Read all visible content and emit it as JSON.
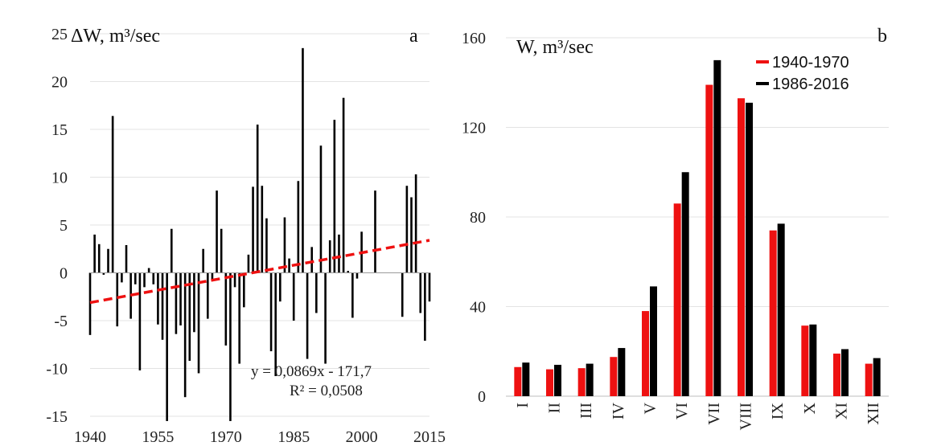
{
  "chart_data": [
    {
      "type": "bar",
      "panel_letter": "a",
      "title": "ΔW, m³/sec",
      "xlabel": "",
      "ylabel": "",
      "xlim": [
        1940,
        2015
      ],
      "ylim": [
        -15,
        25
      ],
      "x_ticks": [
        "1940",
        "1955",
        "1970",
        "1985",
        "2000",
        "2015"
      ],
      "y_ticks": [
        "25",
        "20",
        "15",
        "10",
        "5",
        "0",
        "-5",
        "-10",
        "-15"
      ],
      "grid": true,
      "x": [
        1940,
        1941,
        1942,
        1943,
        1944,
        1945,
        1946,
        1947,
        1948,
        1949,
        1950,
        1951,
        1952,
        1953,
        1954,
        1955,
        1956,
        1957,
        1958,
        1959,
        1960,
        1961,
        1962,
        1963,
        1964,
        1965,
        1966,
        1967,
        1968,
        1969,
        1970,
        1971,
        1972,
        1973,
        1974,
        1975,
        1976,
        1977,
        1978,
        1979,
        1980,
        1981,
        1982,
        1983,
        1984,
        1985,
        1986,
        1987,
        1988,
        1989,
        1990,
        1991,
        1992,
        1993,
        1994,
        1995,
        1996,
        1997,
        1998,
        1999,
        2000,
        2001,
        2002,
        2003,
        2004,
        2005,
        2006,
        2007,
        2008,
        2009,
        2010,
        2011,
        2012,
        2013,
        2014,
        2015
      ],
      "values": [
        -6.5,
        4.0,
        3.0,
        -0.2,
        2.5,
        16.4,
        -5.6,
        -1.0,
        2.9,
        -4.8,
        -1.2,
        -10.2,
        -1.5,
        0.5,
        -1.2,
        -5.4,
        -7.0,
        -15.5,
        4.6,
        -6.4,
        -5.5,
        -13.0,
        -9.2,
        -6.2,
        -10.5,
        2.5,
        -4.8,
        -0.7,
        8.6,
        4.6,
        -7.6,
        -15.5,
        -1.5,
        -9.5,
        -3.6,
        1.9,
        9.0,
        15.5,
        9.1,
        5.7,
        -8.2,
        -10.8,
        -3.0,
        5.8,
        1.5,
        -5.0,
        9.6,
        23.5,
        -9.0,
        2.7,
        -4.2,
        13.3,
        -9.5,
        3.4,
        16.0,
        4.0,
        18.3,
        0.2,
        -4.7,
        -0.6,
        4.3,
        0.0,
        0.0,
        8.6,
        0.0,
        0.0,
        0.0,
        0.0,
        0.0,
        -4.6,
        9.1,
        7.9,
        10.3,
        -4.2,
        -7.1,
        -3.0
      ],
      "series": [
        {
          "name": "",
          "color": "#000000"
        }
      ],
      "trendline": {
        "slope": 0.0869,
        "intercept": -171.7,
        "color": "#ee1111",
        "style": "dashed",
        "equation": "y = 0,0869x - 171,7",
        "r2": "R² = 0,0508"
      }
    },
    {
      "type": "bar",
      "panel_letter": "b",
      "title": "W, m³/sec",
      "xlabel": "",
      "ylabel": "",
      "ylim": [
        0,
        160
      ],
      "y_ticks": [
        "160",
        "120",
        "80",
        "40",
        "0"
      ],
      "grid": true,
      "legend_position": "top-right",
      "categories": [
        "I",
        "II",
        "III",
        "IV",
        "V",
        "VI",
        "VII",
        "VIII",
        "IX",
        "X",
        "XI",
        "XII"
      ],
      "series": [
        {
          "name": "1940-1970",
          "color": "#ee1111",
          "values": [
            13,
            12,
            12.5,
            17.5,
            38,
            86,
            139,
            133,
            74,
            31.5,
            19,
            14.5
          ]
        },
        {
          "name": "1986-2016",
          "color": "#000000",
          "values": [
            15,
            14,
            14.5,
            21.5,
            49,
            100,
            150,
            131,
            77,
            32,
            21,
            17
          ]
        }
      ]
    }
  ]
}
